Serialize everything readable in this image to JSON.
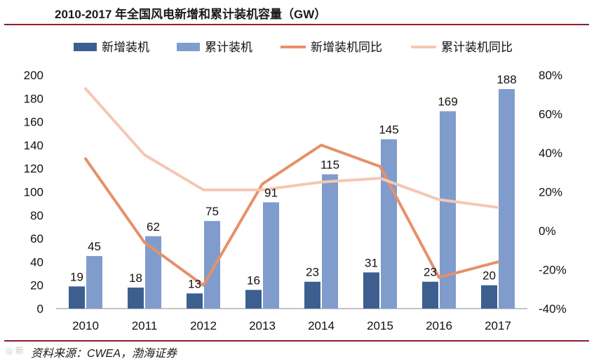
{
  "title": "2010-2017 年全国风电新增和累计装机容量（GW）",
  "source": "资料来源：CWEA，渤海证券",
  "chart_data": {
    "type": "bar",
    "categories": [
      "2010",
      "2011",
      "2012",
      "2013",
      "2014",
      "2015",
      "2016",
      "2017"
    ],
    "series": [
      {
        "name": "新增装机",
        "kind": "bar",
        "axis": "left",
        "color": "#3d5f8f",
        "values": [
          19,
          18,
          13,
          16,
          23,
          31,
          23,
          20
        ]
      },
      {
        "name": "累计装机",
        "kind": "bar",
        "axis": "left",
        "color": "#7f9ccd",
        "values": [
          45,
          62,
          75,
          91,
          115,
          145,
          169,
          188
        ]
      },
      {
        "name": "新增装机同比",
        "kind": "line",
        "axis": "right",
        "color": "#e6906a",
        "values": [
          37,
          -6,
          -28,
          24,
          44,
          33,
          -24,
          -16
        ]
      },
      {
        "name": "累计装机同比",
        "kind": "line",
        "axis": "right",
        "color": "#f5c7b2",
        "values": [
          73,
          39,
          21,
          21,
          25,
          27,
          16,
          12
        ]
      }
    ],
    "ylim_left": [
      0,
      200
    ],
    "yticks_left": [
      "0",
      "20",
      "40",
      "60",
      "80",
      "100",
      "120",
      "140",
      "160",
      "180",
      "200"
    ],
    "ylim_right": [
      -40,
      80
    ],
    "yticks_right": [
      "-40%",
      "-20%",
      "0%",
      "20%",
      "40%",
      "60%",
      "80%"
    ],
    "legend_position": "top"
  }
}
